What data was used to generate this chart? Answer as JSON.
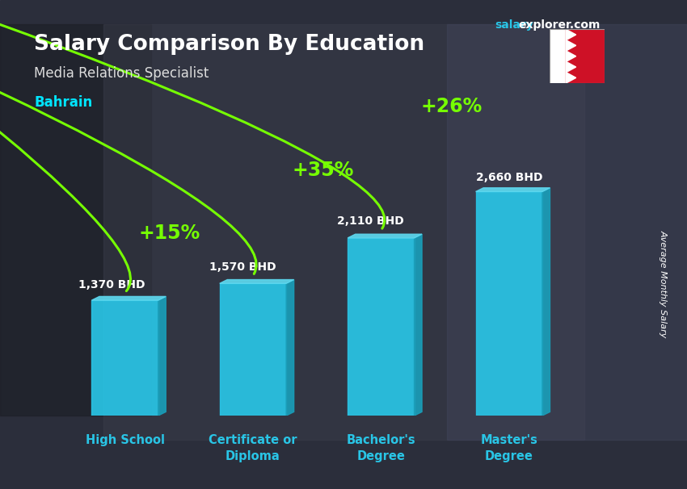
{
  "title": "Salary Comparison By Education",
  "subtitle": "Media Relations Specialist",
  "country": "Bahrain",
  "ylabel": "Average Monthly Salary",
  "categories": [
    "High School",
    "Certificate or\nDiploma",
    "Bachelor's\nDegree",
    "Master's\nDegree"
  ],
  "values": [
    1370,
    1570,
    2110,
    2660
  ],
  "value_labels": [
    "1,370 BHD",
    "1,570 BHD",
    "2,110 BHD",
    "2,660 BHD"
  ],
  "pct_labels": [
    "+15%",
    "+35%",
    "+26%"
  ],
  "bar_color_face": "#29c5e6",
  "bar_color_side": "#1a9db8",
  "bar_color_top": "#5dd8ef",
  "bg_color": "#3a3f52",
  "title_color": "#ffffff",
  "subtitle_color": "#dddddd",
  "country_color": "#00e5ff",
  "value_color": "#ffffff",
  "pct_color": "#76ff03",
  "xlabel_color": "#29c5e6",
  "brand_color_salary": "#29c5e6",
  "brand_color_rest": "#ffffff",
  "figsize": [
    8.5,
    6.06
  ],
  "dpi": 100
}
